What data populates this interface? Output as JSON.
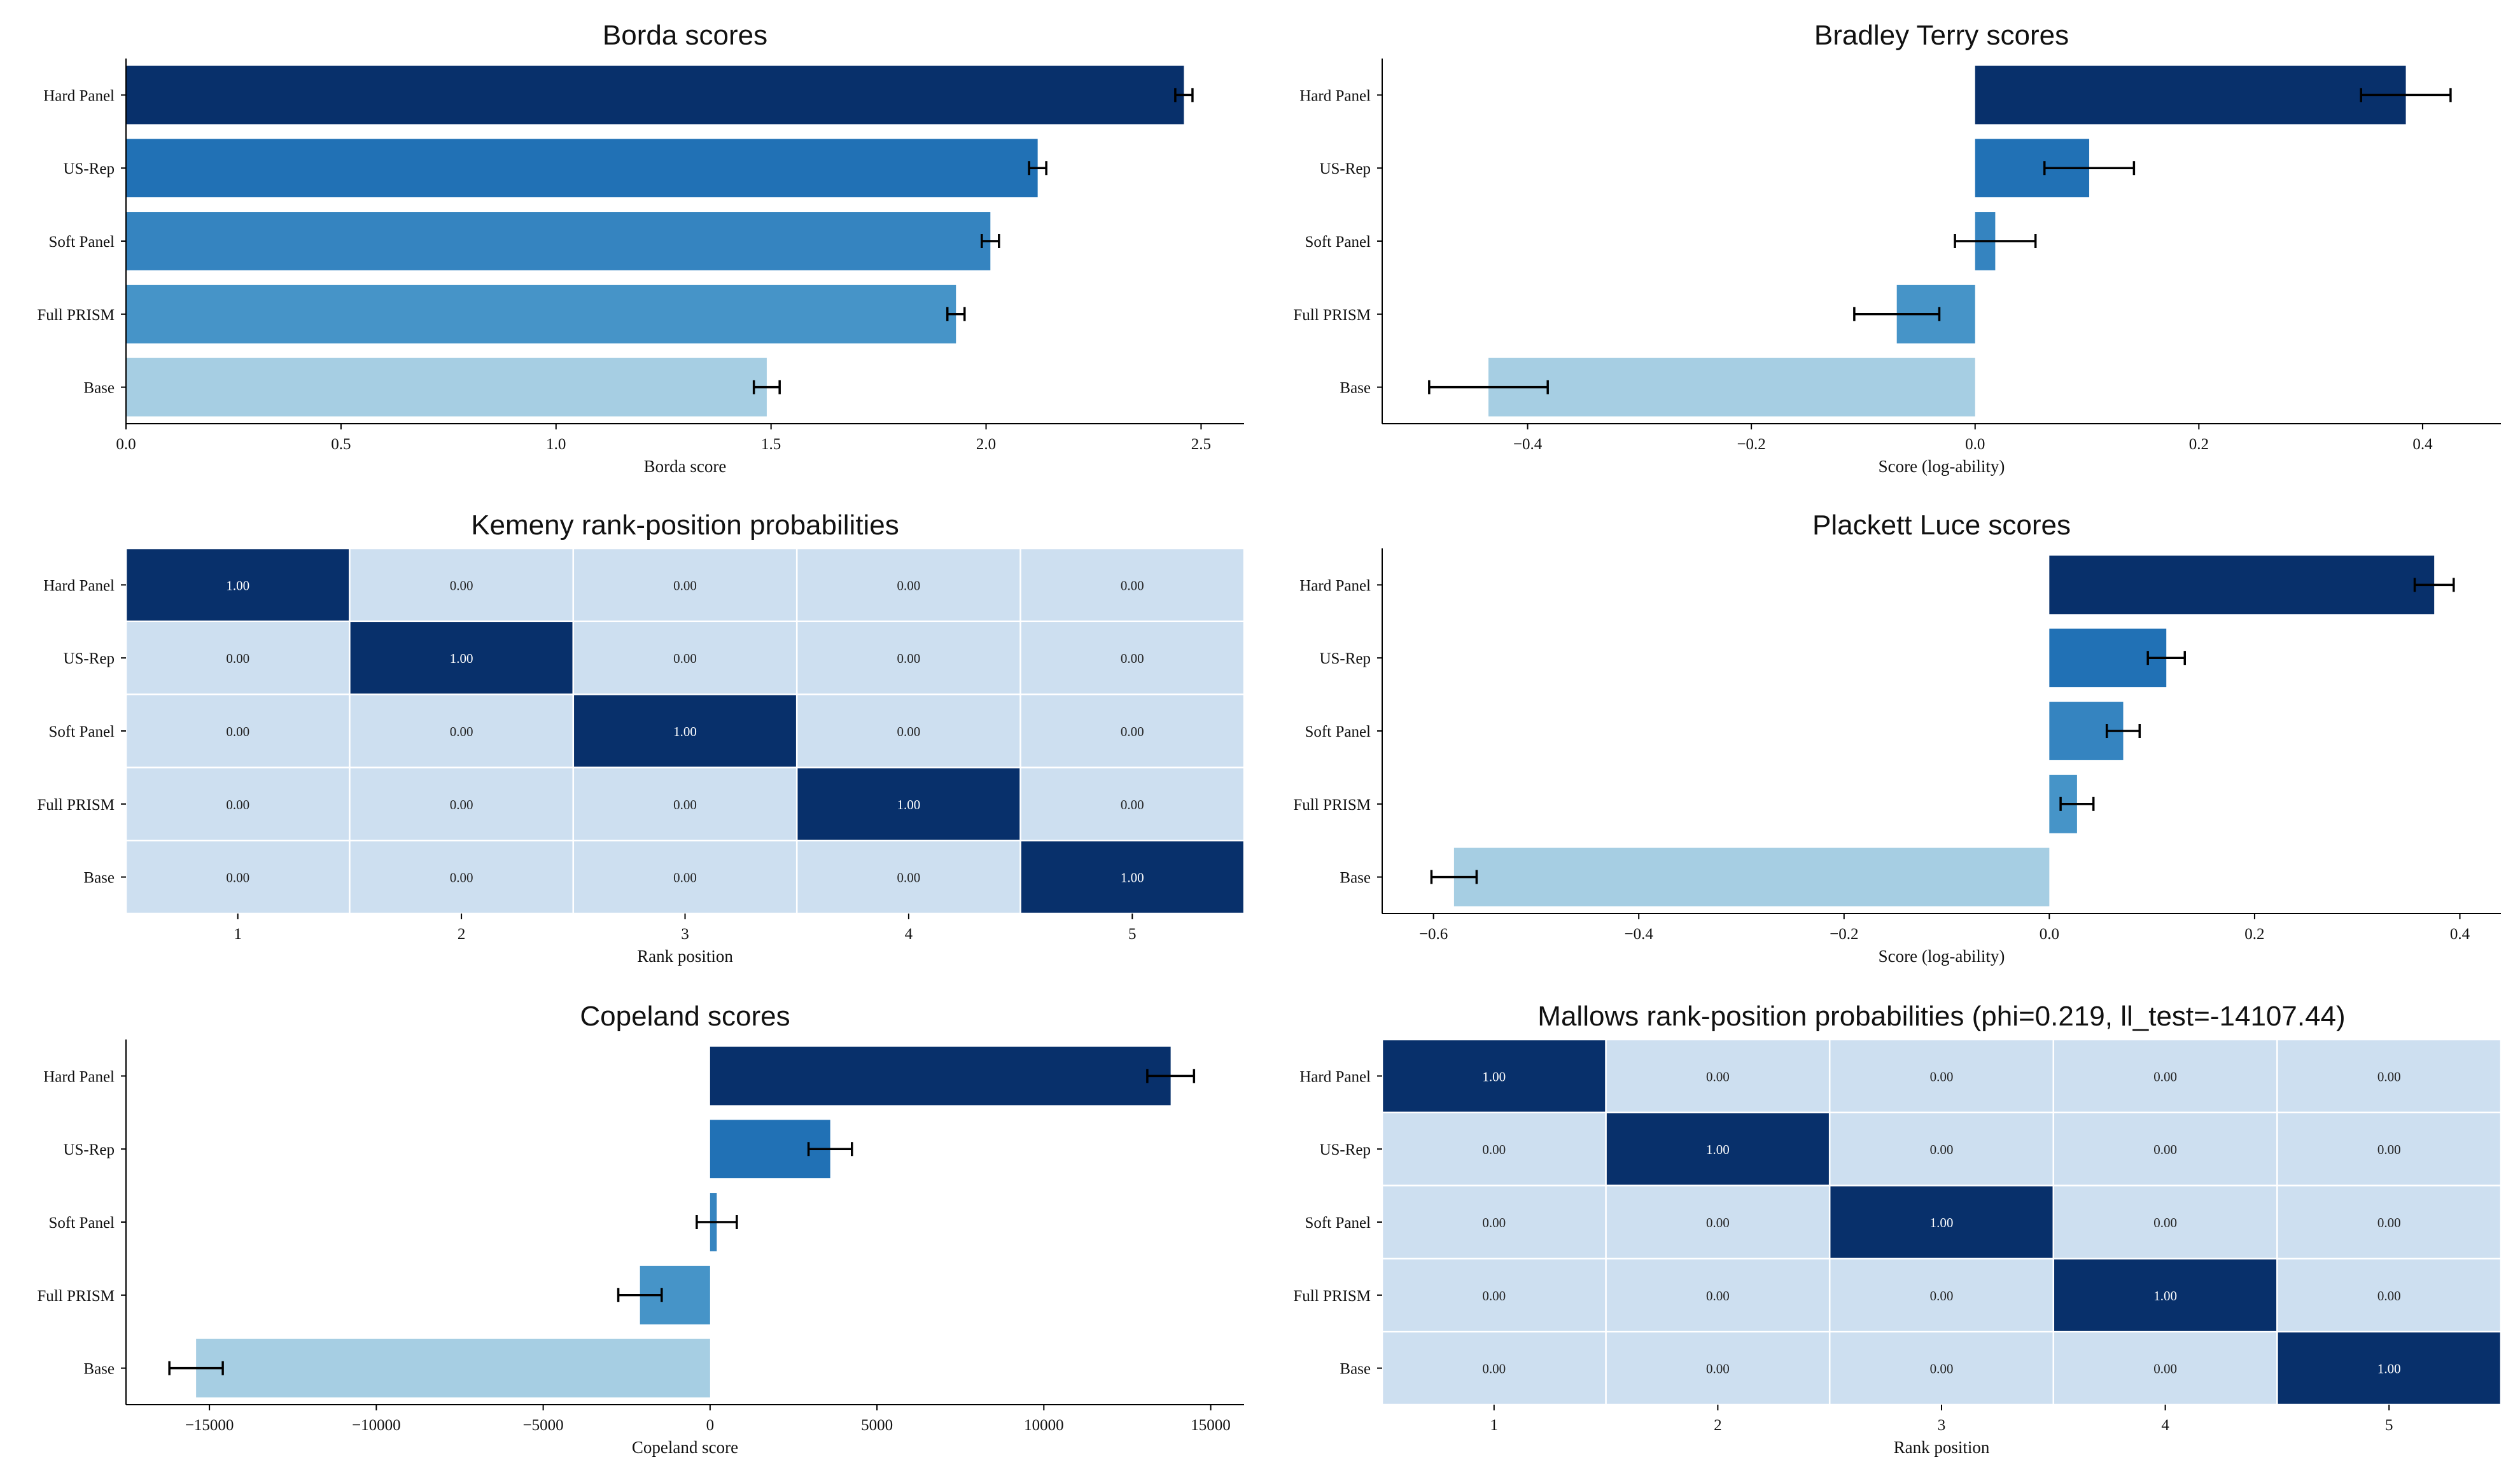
{
  "colors": {
    "rank1": "#08306b",
    "rank2": "#2171b5",
    "rank3": "#3584c0",
    "rank4": "#4694c8",
    "rank5": "#a6cee3",
    "heat_high": "#08306b",
    "heat_low": "#cddff0",
    "error_bar": "#000000",
    "axis": "#000000"
  },
  "chart_data": [
    {
      "id": "borda",
      "type": "bar",
      "orientation": "horizontal",
      "title": "Borda scores",
      "xlabel": "Borda score",
      "ylabel": "",
      "categories": [
        "Hard Panel",
        "US-Rep",
        "Soft Panel",
        "Full PRISM",
        "Base"
      ],
      "values": [
        2.46,
        2.12,
        2.01,
        1.93,
        1.49
      ],
      "errors": [
        0.02,
        0.02,
        0.02,
        0.02,
        0.03
      ],
      "xlim": [
        0,
        2.6
      ],
      "xticks": [
        0,
        0.5,
        1,
        1.5,
        2,
        2.5
      ],
      "xtick_labels": [
        "0.0",
        "0.5",
        "1.0",
        "1.5",
        "2.0",
        "2.5"
      ],
      "grid": false
    },
    {
      "id": "bradley_terry",
      "type": "bar",
      "orientation": "horizontal",
      "title": "Bradley Terry scores",
      "xlabel": "Score (log-ability)",
      "ylabel": "",
      "categories": [
        "Hard Panel",
        "US-Rep",
        "Soft Panel",
        "Full PRISM",
        "Base"
      ],
      "values": [
        0.385,
        0.102,
        0.018,
        -0.07,
        -0.435
      ],
      "errors": [
        0.04,
        0.04,
        0.036,
        0.038,
        0.053
      ],
      "xlim": [
        -0.53,
        0.47
      ],
      "xticks": [
        -0.4,
        -0.2,
        0,
        0.2,
        0.4
      ],
      "xtick_labels": [
        "−0.4",
        "−0.2",
        "0.0",
        "0.2",
        "0.4"
      ],
      "grid": false
    },
    {
      "id": "kemeny",
      "type": "heatmap",
      "title": "Kemeny rank-position probabilities",
      "xlabel": "Rank position",
      "ylabel": "",
      "rows": [
        "Hard Panel",
        "US-Rep",
        "Soft Panel",
        "Full PRISM",
        "Base"
      ],
      "columns": [
        "1",
        "2",
        "3",
        "4",
        "5"
      ],
      "values": [
        [
          1.0,
          0.0,
          0.0,
          0.0,
          0.0
        ],
        [
          0.0,
          1.0,
          0.0,
          0.0,
          0.0
        ],
        [
          0.0,
          0.0,
          1.0,
          0.0,
          0.0
        ],
        [
          0.0,
          0.0,
          0.0,
          1.0,
          0.0
        ],
        [
          0.0,
          0.0,
          0.0,
          0.0,
          1.0
        ]
      ],
      "cell_labels": [
        [
          "1.00",
          "0.00",
          "0.00",
          "0.00",
          "0.00"
        ],
        [
          "0.00",
          "1.00",
          "0.00",
          "0.00",
          "0.00"
        ],
        [
          "0.00",
          "0.00",
          "1.00",
          "0.00",
          "0.00"
        ],
        [
          "0.00",
          "0.00",
          "0.00",
          "1.00",
          "0.00"
        ],
        [
          "0.00",
          "0.00",
          "0.00",
          "0.00",
          "1.00"
        ]
      ]
    },
    {
      "id": "plackett_luce",
      "type": "bar",
      "orientation": "horizontal",
      "title": "Plackett Luce scores",
      "xlabel": "Score (log-ability)",
      "ylabel": "",
      "categories": [
        "Hard Panel",
        "US-Rep",
        "Soft Panel",
        "Full PRISM",
        "Base"
      ],
      "values": [
        0.375,
        0.114,
        0.072,
        0.027,
        -0.58
      ],
      "errors": [
        0.019,
        0.018,
        0.016,
        0.016,
        0.022
      ],
      "xlim": [
        -0.65,
        0.44
      ],
      "xticks": [
        -0.6,
        -0.4,
        -0.2,
        0,
        0.2,
        0.4
      ],
      "xtick_labels": [
        "−0.6",
        "−0.4",
        "−0.2",
        "0.0",
        "0.2",
        "0.4"
      ],
      "grid": false
    },
    {
      "id": "copeland",
      "type": "bar",
      "orientation": "horizontal",
      "title": "Copeland scores",
      "xlabel": "Copeland score",
      "ylabel": "",
      "categories": [
        "Hard Panel",
        "US-Rep",
        "Soft Panel",
        "Full PRISM",
        "Base"
      ],
      "values": [
        13800,
        3600,
        200,
        -2100,
        -15400
      ],
      "errors": [
        700,
        650,
        600,
        650,
        800
      ],
      "xlim": [
        -17500,
        16000
      ],
      "xticks": [
        -15000,
        -10000,
        -5000,
        0,
        5000,
        10000,
        15000
      ],
      "xtick_labels": [
        "−15000",
        "−10000",
        "−5000",
        "0",
        "5000",
        "10000",
        "15000"
      ],
      "grid": false
    },
    {
      "id": "mallows",
      "type": "heatmap",
      "title": "Mallows rank-position probabilities (phi=0.219, ll_test=-14107.44)",
      "xlabel": "Rank position",
      "ylabel": "",
      "rows": [
        "Hard Panel",
        "US-Rep",
        "Soft Panel",
        "Full PRISM",
        "Base"
      ],
      "columns": [
        "1",
        "2",
        "3",
        "4",
        "5"
      ],
      "values": [
        [
          1.0,
          0.0,
          0.0,
          0.0,
          0.0
        ],
        [
          0.0,
          1.0,
          0.0,
          0.0,
          0.0
        ],
        [
          0.0,
          0.0,
          1.0,
          0.0,
          0.0
        ],
        [
          0.0,
          0.0,
          0.0,
          1.0,
          0.0
        ],
        [
          0.0,
          0.0,
          0.0,
          0.0,
          1.0
        ]
      ],
      "cell_labels": [
        [
          "1.00",
          "0.00",
          "0.00",
          "0.00",
          "0.00"
        ],
        [
          "0.00",
          "1.00",
          "0.00",
          "0.00",
          "0.00"
        ],
        [
          "0.00",
          "0.00",
          "1.00",
          "0.00",
          "0.00"
        ],
        [
          "0.00",
          "0.00",
          "0.00",
          "1.00",
          "0.00"
        ],
        [
          "0.00",
          "0.00",
          "0.00",
          "0.00",
          "1.00"
        ]
      ]
    }
  ]
}
